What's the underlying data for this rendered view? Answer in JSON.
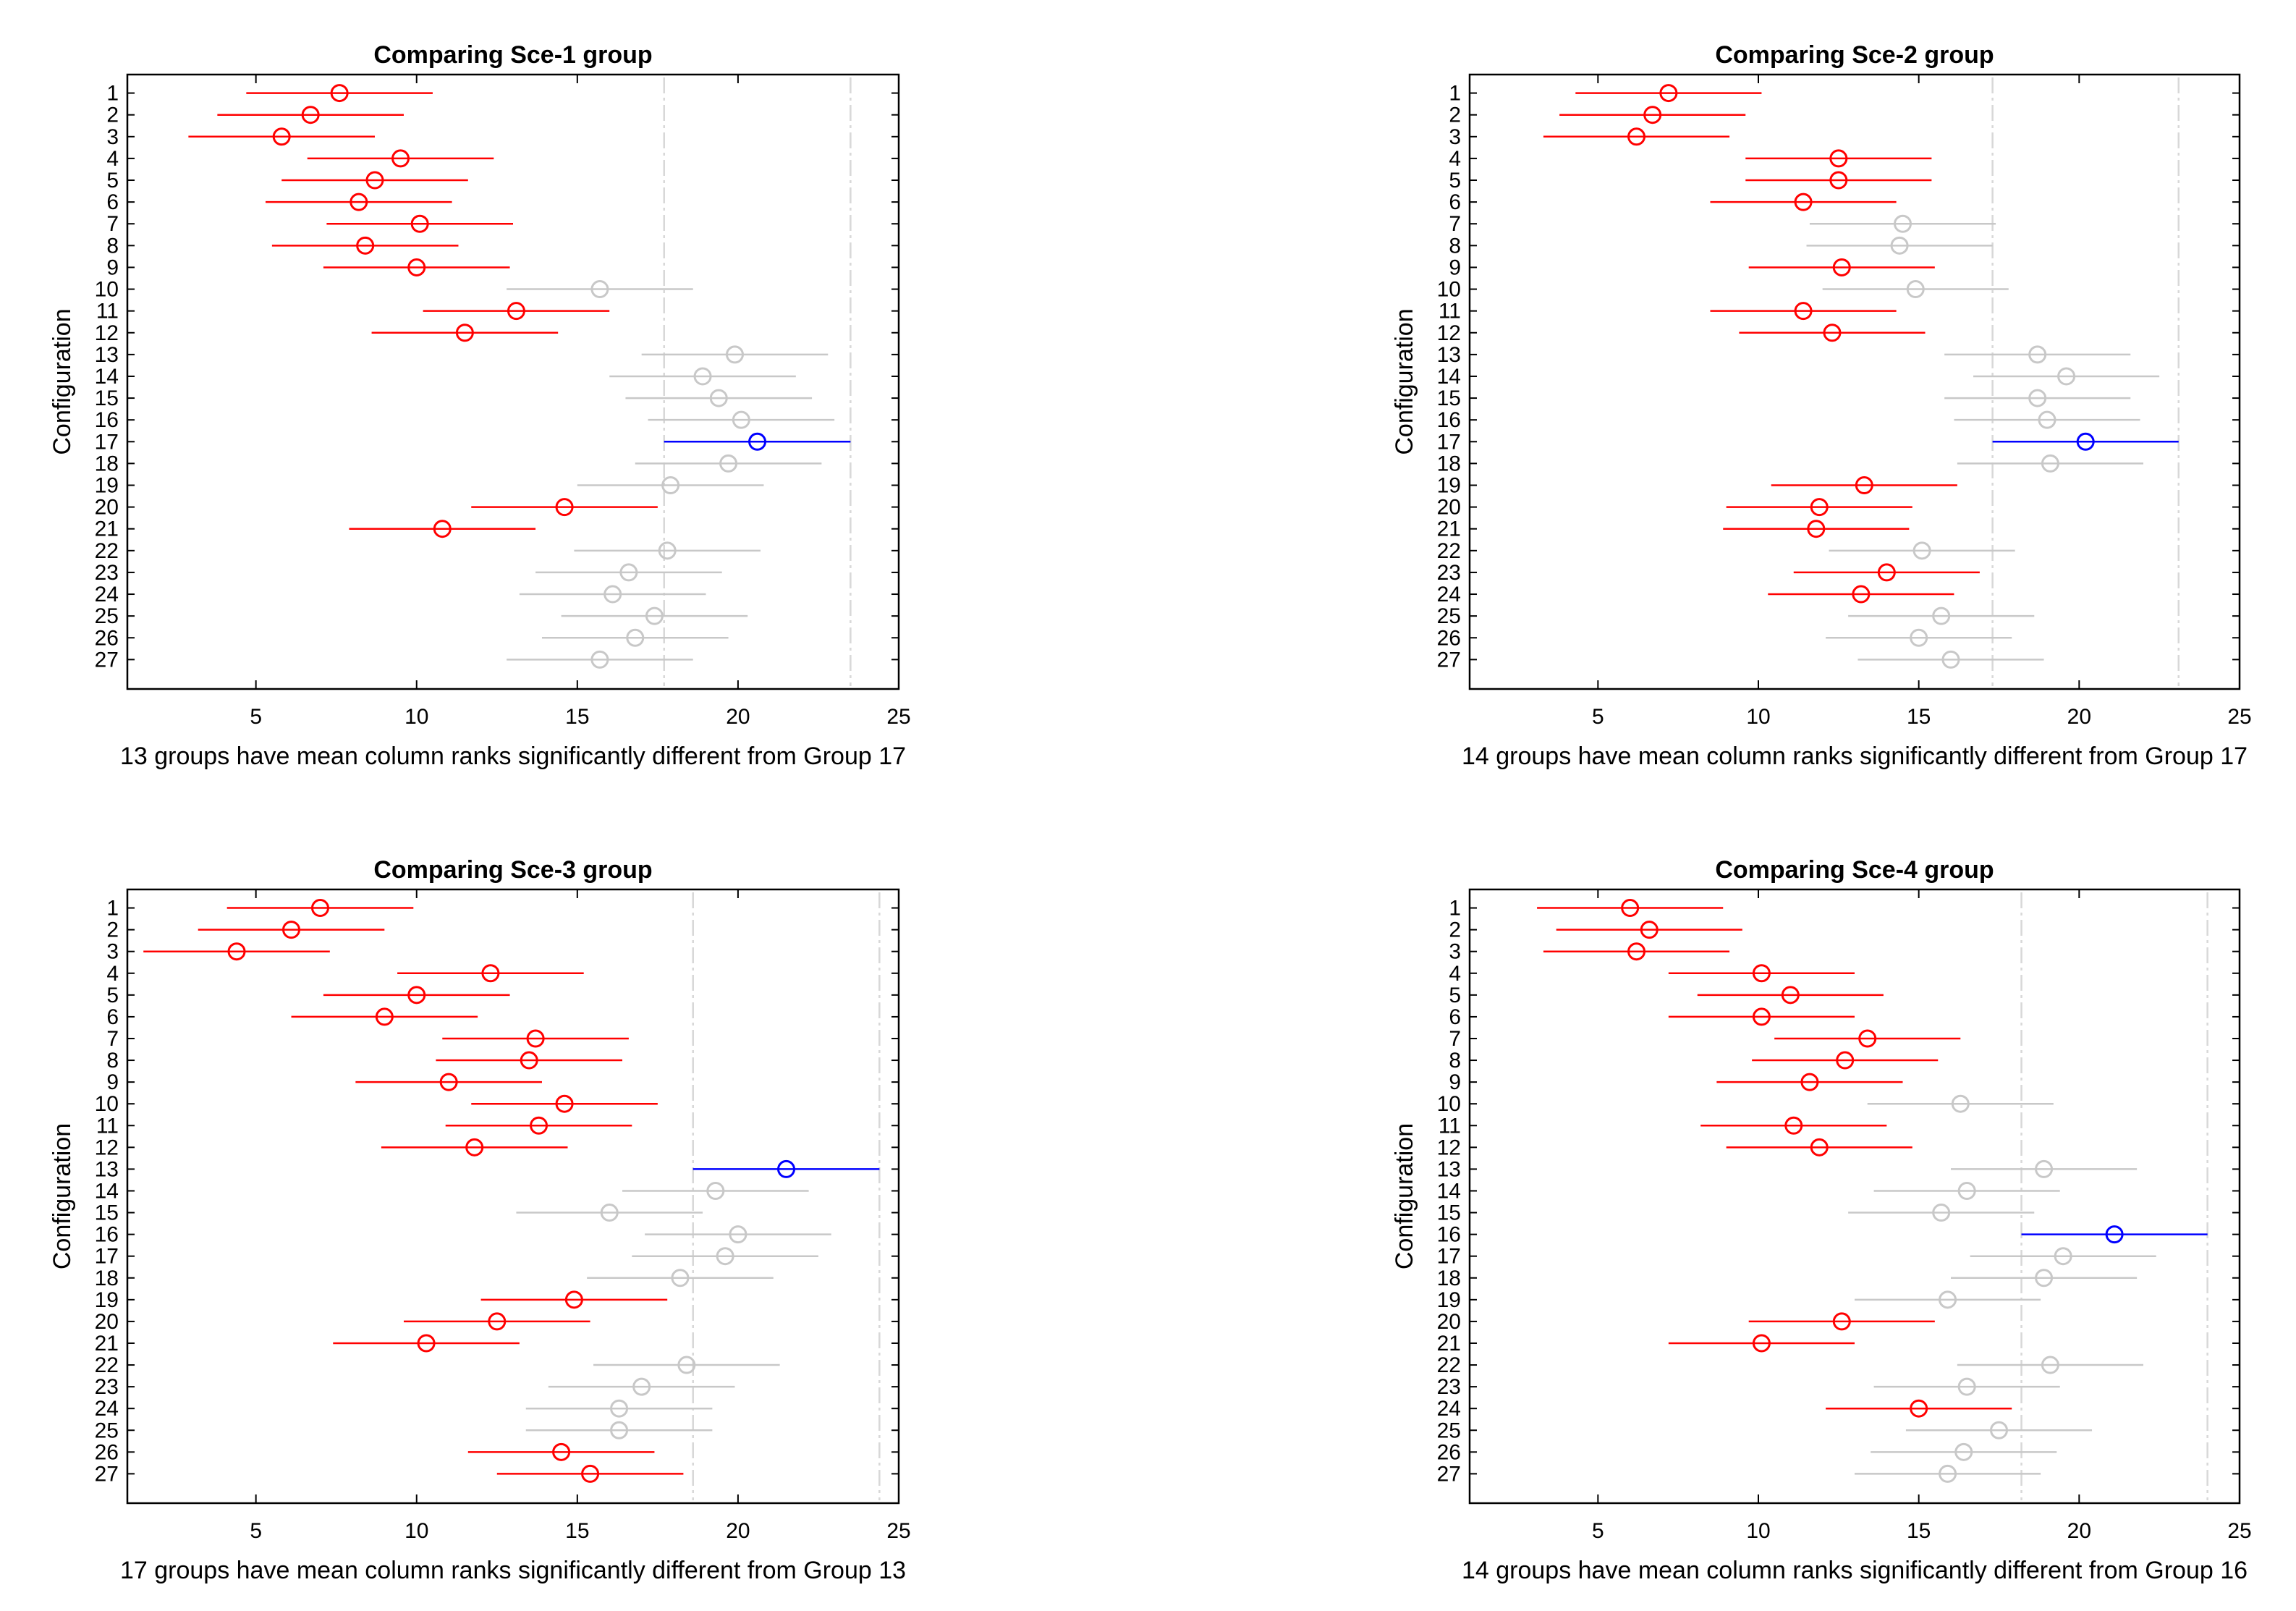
{
  "chart_data": [
    {
      "type": "scatter",
      "title": "Comparing Sce-1 group",
      "xlabel": "13 groups have mean column ranks significantly different from Group 17",
      "ylabel": "Configuration",
      "xlim": [
        1,
        25
      ],
      "xticks": [
        5,
        10,
        15,
        20,
        25
      ],
      "categories": [
        "1",
        "2",
        "3",
        "4",
        "5",
        "6",
        "7",
        "8",
        "9",
        "10",
        "11",
        "12",
        "13",
        "14",
        "15",
        "16",
        "17",
        "18",
        "19",
        "20",
        "21",
        "22",
        "23",
        "24",
        "25",
        "26",
        "27"
      ],
      "means": [
        7.6,
        6.7,
        5.8,
        9.5,
        8.7,
        8.2,
        10.1,
        8.4,
        10.0,
        15.7,
        13.1,
        11.5,
        19.9,
        18.9,
        19.4,
        20.1,
        20.6,
        19.7,
        17.9,
        14.6,
        10.8,
        17.8,
        16.6,
        16.1,
        17.4,
        16.8,
        15.7
      ],
      "half_width": 2.9,
      "comparison_group": 17,
      "significant": [
        1,
        2,
        3,
        4,
        5,
        6,
        7,
        8,
        9,
        11,
        12,
        20,
        21
      ],
      "colors": {
        "selected": "#0000ff",
        "significant": "#ff0000",
        "other": "#c8c8c8",
        "reference": "#d8d8d8"
      }
    },
    {
      "type": "scatter",
      "title": "Comparing Sce-2 group",
      "xlabel": "14 groups have mean column ranks significantly different from Group 17",
      "ylabel": "Configuration",
      "xlim": [
        1,
        25
      ],
      "xticks": [
        5,
        10,
        15,
        20,
        25
      ],
      "categories": [
        "1",
        "2",
        "3",
        "4",
        "5",
        "6",
        "7",
        "8",
        "9",
        "10",
        "11",
        "12",
        "13",
        "14",
        "15",
        "16",
        "17",
        "18",
        "19",
        "20",
        "21",
        "22",
        "23",
        "24",
        "25",
        "26",
        "27"
      ],
      "means": [
        7.2,
        6.7,
        6.2,
        12.5,
        12.5,
        11.4,
        14.5,
        14.4,
        12.6,
        14.9,
        11.4,
        12.3,
        18.7,
        19.6,
        18.7,
        19.0,
        20.2,
        19.1,
        13.3,
        11.9,
        11.8,
        15.1,
        14.0,
        13.2,
        15.7,
        15.0,
        16.0
      ],
      "half_width": 2.9,
      "comparison_group": 17,
      "significant": [
        1,
        2,
        3,
        4,
        5,
        6,
        9,
        11,
        12,
        19,
        20,
        21,
        23,
        24
      ],
      "colors": {
        "selected": "#0000ff",
        "significant": "#ff0000",
        "other": "#c8c8c8",
        "reference": "#d8d8d8"
      }
    },
    {
      "type": "scatter",
      "title": "Comparing Sce-3 group",
      "xlabel": "17 groups have mean column ranks significantly different from Group 13",
      "ylabel": "Configuration",
      "xlim": [
        1,
        25
      ],
      "xticks": [
        5,
        10,
        15,
        20,
        25
      ],
      "categories": [
        "1",
        "2",
        "3",
        "4",
        "5",
        "6",
        "7",
        "8",
        "9",
        "10",
        "11",
        "12",
        "13",
        "14",
        "15",
        "16",
        "17",
        "18",
        "19",
        "20",
        "21",
        "22",
        "23",
        "24",
        "25",
        "26",
        "27"
      ],
      "means": [
        7.0,
        6.1,
        4.4,
        12.3,
        10.0,
        9.0,
        13.7,
        13.5,
        11.0,
        14.6,
        13.8,
        11.8,
        21.5,
        19.3,
        16.0,
        20.0,
        19.6,
        18.2,
        14.9,
        12.5,
        10.3,
        18.4,
        17.0,
        16.3,
        16.3,
        14.5,
        15.4
      ],
      "half_width": 2.9,
      "comparison_group": 13,
      "significant": [
        1,
        2,
        3,
        4,
        5,
        6,
        7,
        8,
        9,
        10,
        11,
        12,
        19,
        20,
        21,
        26,
        27
      ],
      "colors": {
        "selected": "#0000ff",
        "significant": "#ff0000",
        "other": "#c8c8c8",
        "reference": "#d8d8d8"
      }
    },
    {
      "type": "scatter",
      "title": "Comparing Sce-4 group",
      "xlabel": "14 groups have mean column ranks significantly different from Group 16",
      "ylabel": "Configuration",
      "xlim": [
        1,
        25
      ],
      "xticks": [
        5,
        10,
        15,
        20,
        25
      ],
      "categories": [
        "1",
        "2",
        "3",
        "4",
        "5",
        "6",
        "7",
        "8",
        "9",
        "10",
        "11",
        "12",
        "13",
        "14",
        "15",
        "16",
        "17",
        "18",
        "19",
        "20",
        "21",
        "22",
        "23",
        "24",
        "25",
        "26",
        "27"
      ],
      "means": [
        6.0,
        6.6,
        6.2,
        10.1,
        11.0,
        10.1,
        13.4,
        12.7,
        11.6,
        16.3,
        11.1,
        11.9,
        18.9,
        16.5,
        15.7,
        21.1,
        19.5,
        18.9,
        15.9,
        12.6,
        10.1,
        19.1,
        16.5,
        15.0,
        17.5,
        16.4,
        15.9
      ],
      "half_width": 2.9,
      "comparison_group": 16,
      "significant": [
        1,
        2,
        3,
        4,
        5,
        6,
        7,
        8,
        9,
        11,
        12,
        20,
        21,
        24
      ],
      "colors": {
        "selected": "#0000ff",
        "significant": "#ff0000",
        "other": "#c8c8c8",
        "reference": "#d8d8d8"
      }
    }
  ]
}
